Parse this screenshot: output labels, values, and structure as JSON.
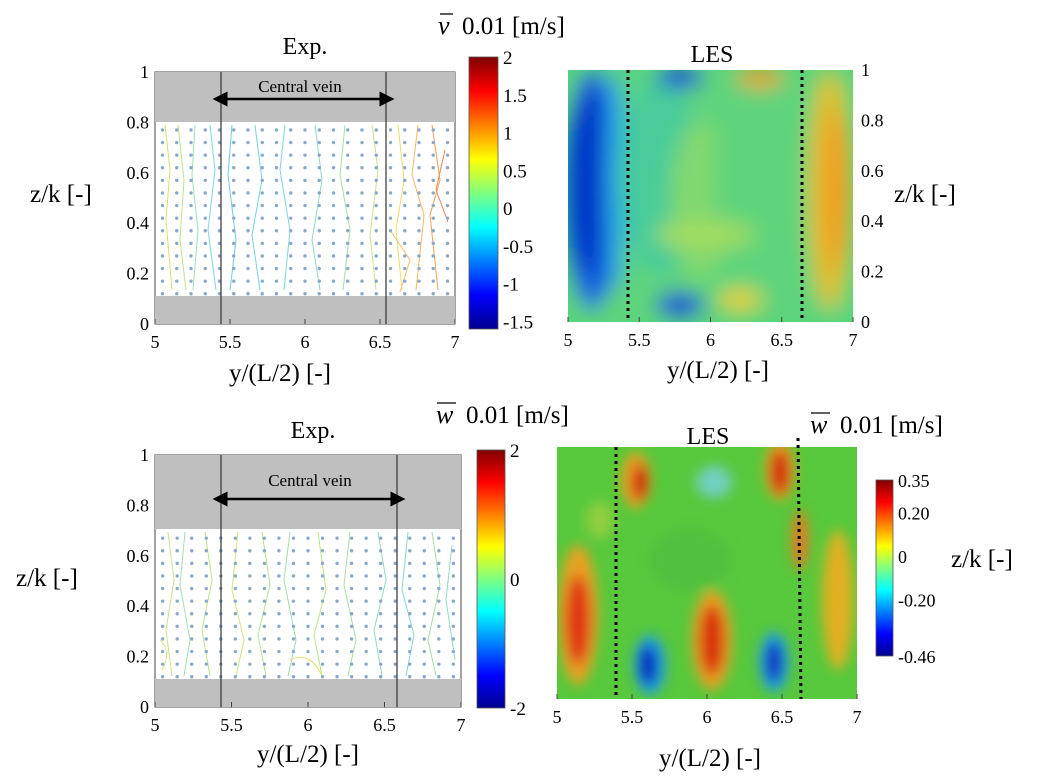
{
  "chart_data": [
    {
      "type": "heatmap",
      "title": "Exp.",
      "xlabel": "y/(L/2)  [-]",
      "ylabel": "z/k [-]",
      "xlim": [
        5,
        7
      ],
      "ylim": [
        0,
        1
      ],
      "xticks": [
        "5",
        "5.5",
        "6",
        "6.5",
        "7"
      ],
      "yticks": [
        "0",
        "0.2",
        "0.4",
        "0.6",
        "0.8",
        "1"
      ],
      "annotation": "Central vein",
      "vein_lines_x": [
        5.45,
        6.55
      ],
      "measured_band_z": [
        0.12,
        0.81
      ],
      "shaded_regions": "grey",
      "colorbar": {
        "quantity": "v",
        "label": "0.01 [m/s]",
        "ticks": [
          "2",
          "1.5",
          "1",
          "0.5",
          "0",
          "-0.5",
          "-1",
          "-1.5"
        ],
        "range": [
          -1.6,
          2
        ]
      }
    },
    {
      "type": "heatmap",
      "title": "LES",
      "xlabel": "y/(L/2)  [-]",
      "ylabel": "z/k [-]",
      "xlim": [
        5,
        7
      ],
      "ylim": [
        0,
        1
      ],
      "xticks": [
        "5",
        "5.5",
        "6",
        "6.5",
        "7"
      ],
      "yticks": [
        "0",
        "0.2",
        "0.4",
        "0.6",
        "0.8",
        "1"
      ],
      "vein_lines_x": [
        5.42,
        6.62
      ],
      "colorbar": {
        "quantity": "v",
        "label": "0.01 [m/s]",
        "range": [
          -1.6,
          2
        ]
      }
    },
    {
      "type": "heatmap",
      "title": "Exp.",
      "xlabel": "y/(L/2)  [-]",
      "ylabel": "z/k [-]",
      "xlim": [
        5,
        7
      ],
      "ylim": [
        0,
        1
      ],
      "xticks": [
        "5",
        "5.5",
        "6",
        "6.5",
        "7"
      ],
      "yticks": [
        "0",
        "0.2",
        "0.4",
        "0.6",
        "0.8",
        "1"
      ],
      "annotation": "Central vein",
      "vein_lines_x": [
        5.45,
        6.58
      ],
      "measured_band_z": [
        0.12,
        0.7
      ],
      "shaded_regions": "grey",
      "colorbar": {
        "quantity": "w",
        "label": "0.01 [m/s]",
        "ticks": [
          "2",
          "0",
          "-2"
        ],
        "range": [
          -2,
          2
        ]
      }
    },
    {
      "type": "heatmap",
      "title": "LES",
      "xlabel": "y/(L/2)  [-]",
      "ylabel": "z/k [-]",
      "xlim": [
        5,
        7
      ],
      "xticks": [
        "5",
        "5.5",
        "6",
        "6.5",
        "7"
      ],
      "vein_lines_x": [
        5.42,
        6.62
      ],
      "colorbar": {
        "quantity": "w",
        "label": "0.01 [m/s]",
        "ticks": [
          "0.35",
          "0.20",
          "0",
          "-0.20",
          "-0.46"
        ],
        "range": [
          -0.46,
          0.35
        ]
      }
    }
  ]
}
